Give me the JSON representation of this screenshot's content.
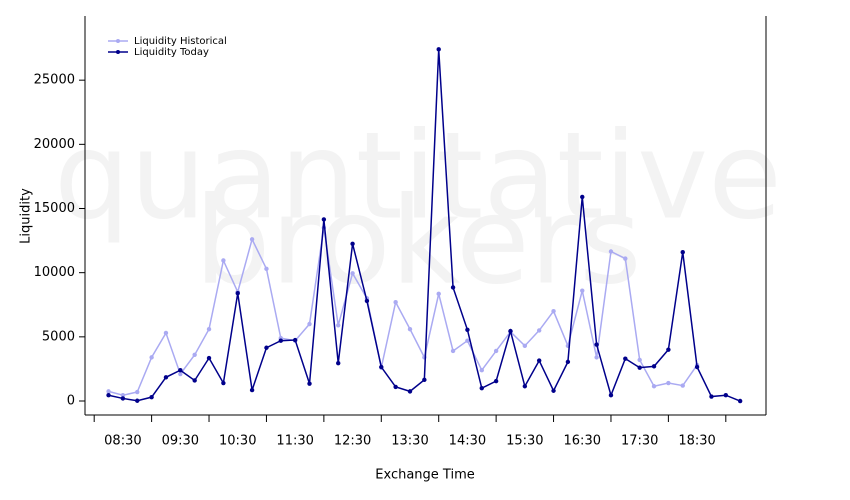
{
  "chart_data": {
    "type": "line",
    "watermark": [
      "quantitative",
      "brokers"
    ],
    "xlabel": "Exchange Time",
    "ylabel": "Liquidity",
    "legend": "top-left",
    "x": [
      8.25,
      8.5,
      8.75,
      9.0,
      9.25,
      9.5,
      9.75,
      10.0,
      10.25,
      10.5,
      10.75,
      11.0,
      11.25,
      11.5,
      11.75,
      12.0,
      12.25,
      12.5,
      12.75,
      13.0,
      13.25,
      13.5,
      13.75,
      14.0,
      14.25,
      14.5,
      14.75,
      15.0,
      15.25,
      15.5,
      15.75,
      16.0,
      16.25,
      16.5,
      16.75,
      17.0,
      17.25,
      17.5,
      17.75,
      18.0,
      18.25,
      18.5,
      18.75,
      19.0,
      19.25
    ],
    "series": [
      {
        "name": "Liquidity Historical",
        "color": "#aaaaf2",
        "values": [
          750,
          450,
          700,
          3400,
          5300,
          2100,
          3600,
          5600,
          10950,
          8500,
          12600,
          10300,
          4900,
          4700,
          6000,
          13500,
          5900,
          9950,
          8000,
          2600,
          7700,
          5600,
          3400,
          8350,
          3900,
          4700,
          2400,
          3900,
          5400,
          4300,
          5500,
          7000,
          4300,
          8600,
          3400,
          11650,
          11100,
          3200,
          1150,
          1400,
          1200,
          2800,
          null,
          null,
          null
        ]
      },
      {
        "name": "Liquidity Today",
        "color": "#00008b",
        "values": [
          450,
          200,
          20,
          300,
          1850,
          2400,
          1600,
          3350,
          1400,
          8400,
          850,
          4150,
          4700,
          4750,
          1350,
          14150,
          2950,
          12250,
          7800,
          2650,
          1100,
          750,
          1650,
          27400,
          8850,
          5550,
          1000,
          1550,
          5450,
          1150,
          3150,
          800,
          3050,
          15900,
          4400,
          450,
          3300,
          2600,
          2700,
          4000,
          11600,
          2650,
          350,
          450,
          0
        ]
      }
    ],
    "xlim": [
      7.84,
      19.7
    ],
    "xticks": [
      {
        "value": 8.5,
        "label": "08:30"
      },
      {
        "value": 9.5,
        "label": "09:30"
      },
      {
        "value": 10.5,
        "label": "10:30"
      },
      {
        "value": 11.5,
        "label": "11:30"
      },
      {
        "value": 12.5,
        "label": "12:30"
      },
      {
        "value": 13.5,
        "label": "13:30"
      },
      {
        "value": 14.5,
        "label": "14:30"
      },
      {
        "value": 15.5,
        "label": "15:30"
      },
      {
        "value": 16.5,
        "label": "16:30"
      },
      {
        "value": 17.5,
        "label": "17:30"
      },
      {
        "value": 18.5,
        "label": "18:30"
      }
    ],
    "xminorticks": [
      8,
      9,
      10,
      11,
      12,
      13,
      14,
      15,
      16,
      17,
      18,
      19
    ],
    "ylim": [
      -1090,
      30000
    ],
    "yticks": [
      0,
      5000,
      10000,
      15000,
      20000,
      25000
    ]
  }
}
